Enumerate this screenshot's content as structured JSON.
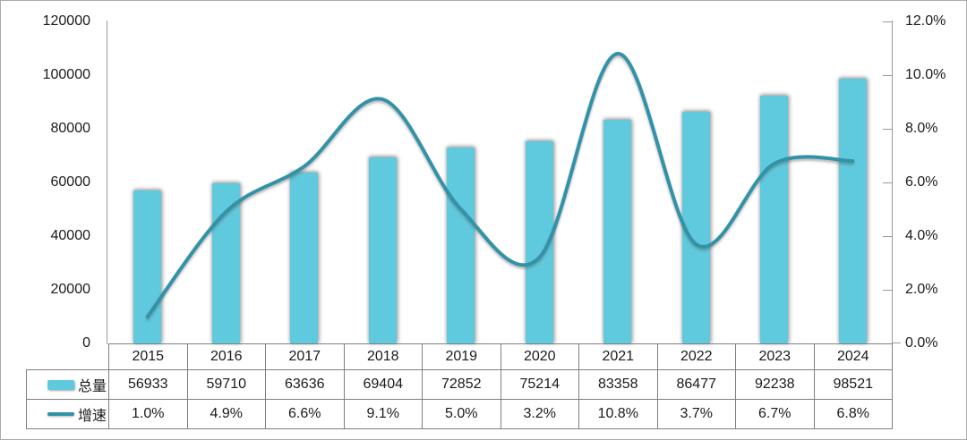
{
  "colors": {
    "bar": "#5FC9DD",
    "line": "#3092A8",
    "axis": "#999999",
    "table_border": "#7F7F7F",
    "text": "#1A1A1A",
    "frame_border": "#ABABAB"
  },
  "chart_data": {
    "type": "combo-bar-line",
    "categories": [
      "2015",
      "2016",
      "2017",
      "2018",
      "2019",
      "2020",
      "2021",
      "2022",
      "2023",
      "2024"
    ],
    "series": [
      {
        "name": "总量",
        "chart_type": "bar",
        "axis": "left",
        "color": "#5FC9DD",
        "values": [
          56933,
          59710,
          63636,
          69404,
          72852,
          75214,
          83358,
          86477,
          92238,
          98521
        ],
        "display_values": [
          "56933",
          "59710",
          "63636",
          "69404",
          "72852",
          "75214",
          "83358",
          "86477",
          "92238",
          "98521"
        ]
      },
      {
        "name": "增速",
        "chart_type": "line",
        "axis": "right",
        "color": "#3092A8",
        "values": [
          1.0,
          4.9,
          6.6,
          9.1,
          5.0,
          3.2,
          10.8,
          3.7,
          6.7,
          6.8
        ],
        "display_values": [
          "1.0%",
          "4.9%",
          "6.6%",
          "9.1%",
          "5.0%",
          "3.2%",
          "10.8%",
          "3.7%",
          "6.7%",
          "6.8%"
        ]
      }
    ],
    "left_axis": {
      "min": 0,
      "max": 120000,
      "tick_labels": [
        "120000",
        "100000",
        "80000",
        "60000",
        "40000",
        "20000",
        "0"
      ]
    },
    "right_axis": {
      "min": 0,
      "max": 12,
      "tick_labels": [
        "12.0%",
        "10.0%",
        "8.0%",
        "6.0%",
        "4.0%",
        "2.0%",
        "0.0%"
      ]
    },
    "grid": false,
    "legend_position": "table-rows-left",
    "smooth_line": true
  }
}
